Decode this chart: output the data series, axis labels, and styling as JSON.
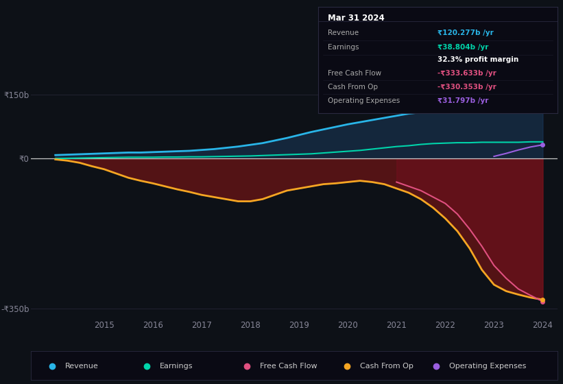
{
  "bg_color": "#0d1117",
  "years": [
    2014.0,
    2014.25,
    2014.5,
    2014.75,
    2015.0,
    2015.25,
    2015.5,
    2015.75,
    2016.0,
    2016.25,
    2016.5,
    2016.75,
    2017.0,
    2017.25,
    2017.5,
    2017.75,
    2018.0,
    2018.25,
    2018.5,
    2018.75,
    2019.0,
    2019.25,
    2019.5,
    2019.75,
    2020.0,
    2020.25,
    2020.5,
    2020.75,
    2021.0,
    2021.25,
    2021.5,
    2021.75,
    2022.0,
    2022.25,
    2022.5,
    2022.75,
    2023.0,
    2023.25,
    2023.5,
    2023.75,
    2024.0
  ],
  "revenue": [
    8,
    9,
    10,
    11,
    12,
    13,
    14,
    14,
    15,
    16,
    17,
    18,
    20,
    22,
    25,
    28,
    32,
    36,
    42,
    48,
    55,
    62,
    68,
    74,
    80,
    85,
    90,
    95,
    100,
    105,
    108,
    110,
    112,
    113,
    115,
    116,
    117,
    118,
    119,
    120,
    120
  ],
  "earnings": [
    0,
    0.5,
    1,
    1.5,
    2,
    2.5,
    3,
    3,
    3,
    3.5,
    3.5,
    4,
    4,
    4.5,
    5,
    5.5,
    6,
    7,
    8,
    9,
    10,
    11,
    13,
    15,
    17,
    19,
    22,
    25,
    28,
    30,
    33,
    35,
    36,
    37,
    37,
    38,
    38,
    38,
    38,
    39,
    39
  ],
  "cash_from_op": [
    -2,
    -5,
    -10,
    -18,
    -25,
    -35,
    -45,
    -52,
    -58,
    -65,
    -72,
    -78,
    -85,
    -90,
    -95,
    -100,
    -100,
    -95,
    -85,
    -75,
    -70,
    -65,
    -60,
    -58,
    -55,
    -52,
    -55,
    -60,
    -70,
    -80,
    -95,
    -115,
    -140,
    -170,
    -210,
    -260,
    -295,
    -310,
    -318,
    -325,
    -330
  ],
  "free_cash_flow": [
    0,
    0,
    0,
    0,
    0,
    0,
    0,
    0,
    0,
    0,
    0,
    0,
    0,
    0,
    0,
    0,
    0,
    0,
    0,
    0,
    0,
    0,
    0,
    0,
    0,
    0,
    0,
    0,
    -55,
    -65,
    -75,
    -90,
    -105,
    -130,
    -165,
    -205,
    -250,
    -280,
    -305,
    -320,
    -334
  ],
  "operating_expenses": [
    0,
    0,
    0,
    0,
    0,
    0,
    0,
    0,
    0,
    0,
    0,
    0,
    0,
    0,
    0,
    0,
    0,
    0,
    0,
    0,
    0,
    0,
    0,
    0,
    0,
    0,
    0,
    0,
    0,
    0,
    0,
    0,
    0,
    0,
    0,
    0,
    5,
    12,
    20,
    27,
    32
  ],
  "ylim": [
    -370,
    200
  ],
  "ytick_positions": [
    -350,
    0,
    150
  ],
  "ytick_labels": [
    "-₹350b",
    "₹0",
    "₹150b"
  ],
  "xticks": [
    2015,
    2016,
    2017,
    2018,
    2019,
    2020,
    2021,
    2022,
    2023,
    2024
  ],
  "line_colors": {
    "revenue": "#29b5e8",
    "earnings": "#00d4aa",
    "free_cash_flow": "#e05080",
    "cash_from_op": "#f5a623",
    "operating_expenses": "#9b5fe0"
  },
  "fill_color_revenue": "#1a3a5c",
  "fill_color_negative": "#6b1515",
  "zero_line_color": "#dddddd",
  "grid_color": "#252535",
  "tooltip_bg": "#0a0a14",
  "tooltip_border": "#333355",
  "tooltip_title": "Mar 31 2024",
  "tooltip_rows": [
    {
      "label": "Revenue",
      "value": "₹120.277b /yr",
      "color": "#29b5e8"
    },
    {
      "label": "Earnings",
      "value": "₹38.804b /yr",
      "color": "#00d4aa"
    },
    {
      "label": "",
      "value": "32.3% profit margin",
      "color": "#ffffff"
    },
    {
      "label": "Free Cash Flow",
      "value": "-₹333.633b /yr",
      "color": "#e05080"
    },
    {
      "label": "Cash From Op",
      "value": "-₹330.353b /yr",
      "color": "#e05080"
    },
    {
      "label": "Operating Expenses",
      "value": "₹31.797b /yr",
      "color": "#9b5fe0"
    }
  ],
  "legend_items": [
    {
      "label": "Revenue",
      "color": "#29b5e8"
    },
    {
      "label": "Earnings",
      "color": "#00d4aa"
    },
    {
      "label": "Free Cash Flow",
      "color": "#e05080"
    },
    {
      "label": "Cash From Op",
      "color": "#f5a623"
    },
    {
      "label": "Operating Expenses",
      "color": "#9b5fe0"
    }
  ]
}
